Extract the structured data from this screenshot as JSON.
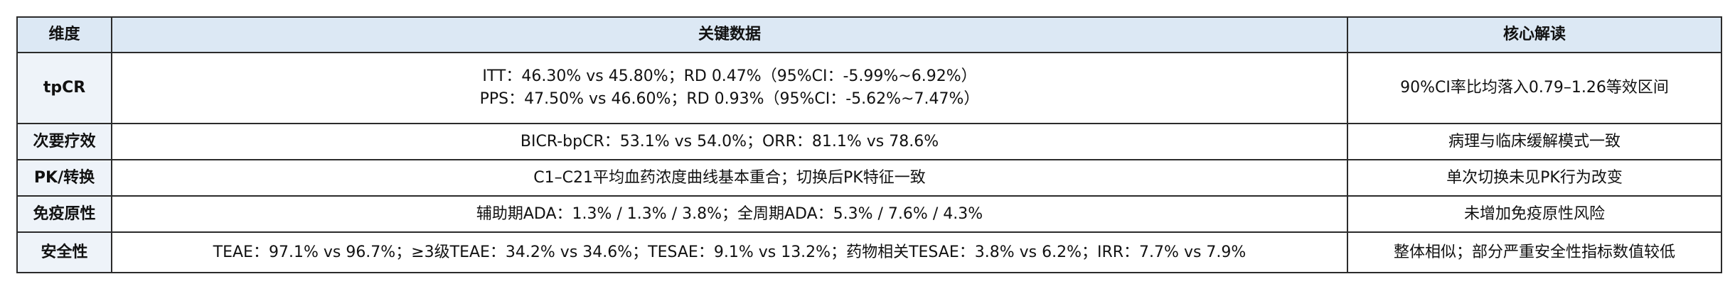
{
  "table": {
    "header": [
      "维度",
      "关键数据",
      "核心解读"
    ],
    "rows": [
      {
        "dimension": "tpCR",
        "data": [
          "ITT：46.30% vs 45.80%；RD 0.47%（95%CI：-5.99%~6.92%）",
          "PPS：47.50% vs 46.60%；RD 0.93%（95%CI：-5.62%~7.47%）"
        ],
        "interpretation": "90%CI率比均落入0.79–1.26等效区间"
      },
      {
        "dimension": "次要疗效",
        "data": [
          "BICR-bpCR：53.1% vs 54.0%；ORR：81.1% vs 78.6%"
        ],
        "interpretation": "病理与临床缓解模式一致"
      },
      {
        "dimension": "PK/转换",
        "data": [
          "C1–C21平均血药浓度曲线基本重合；切换后PK特征一致"
        ],
        "interpretation": "单次切换未见PK行为改变"
      },
      {
        "dimension": "免疫原性",
        "data": [
          "辅助期ADA：1.3% / 1.3% / 3.8%；全周期ADA：5.3% / 7.6% / 4.3%"
        ],
        "interpretation": "未增加免疫原性风险"
      },
      {
        "dimension": "安全性",
        "data": [
          "TEAE：97.1% vs 96.7%；≥3级TEAE：34.2% vs 34.6%；TESAE：9.1% vs 13.2%；药物相关TESAE：3.8% vs 6.2%；IRR：7.7% vs 7.9%"
        ],
        "interpretation": "整体相似；部分严重安全性指标数值较低"
      }
    ]
  }
}
